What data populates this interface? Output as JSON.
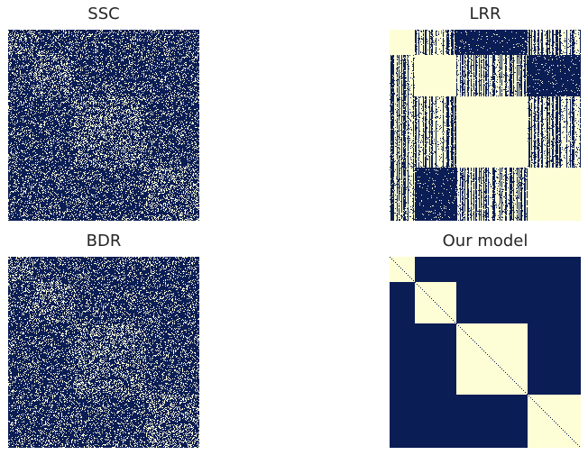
{
  "colors": {
    "background": "#0b1d55",
    "block": "#fefed6"
  },
  "chart_data": [
    {
      "type": "heatmap",
      "title": "SSC",
      "pattern": "sparse-noise",
      "grid": false,
      "density": 0.18,
      "block_boundaries": [
        0.0,
        0.13,
        0.35,
        0.72,
        1.0
      ]
    },
    {
      "type": "heatmap",
      "title": "LRR",
      "pattern": "column-striped-blocks",
      "grid": false,
      "block_boundaries": [
        0.0,
        0.13,
        0.35,
        0.72,
        1.0
      ]
    },
    {
      "type": "heatmap",
      "title": "BDR",
      "pattern": "sparse-noise",
      "grid": false,
      "density": 0.18,
      "block_boundaries": [
        0.0,
        0.13,
        0.35,
        0.72,
        1.0
      ]
    },
    {
      "type": "heatmap",
      "title": "Our model",
      "pattern": "block-diagonal",
      "grid": false,
      "block_boundaries": [
        0.0,
        0.13,
        0.35,
        0.72,
        1.0
      ]
    }
  ]
}
